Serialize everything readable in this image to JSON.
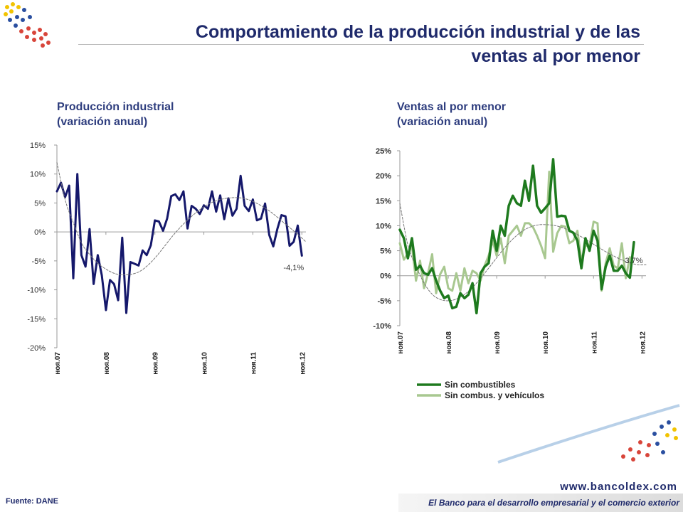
{
  "page": {
    "title_line1": "Comportamiento de la producción industrial y de las",
    "title_line2": "ventas al por menor",
    "source": "Fuente: DANE",
    "website": "www.bancoldex.com",
    "slogan": "El Banco para el desarrollo empresarial y el comercio exterior"
  },
  "colors": {
    "navy": "#15186b",
    "green_dark": "#1e7a1e",
    "green_light": "#a8c890",
    "trend": "#777777",
    "title": "#1f2a6b"
  },
  "chart_data": [
    {
      "type": "line",
      "title": "Producción industrial",
      "subtitle": "(variación anual)",
      "ylim": [
        -20,
        15
      ],
      "yticks": [
        15,
        10,
        5,
        0,
        -5,
        -10,
        -15,
        -20
      ],
      "ytick_format": "percent",
      "xlim": [
        0,
        61
      ],
      "xticks": [
        {
          "x": 0,
          "label": "ноя.07"
        },
        {
          "x": 12,
          "label": "ноя.08"
        },
        {
          "x": 24,
          "label": "ноя.09"
        },
        {
          "x": 36,
          "label": "ноя.10"
        },
        {
          "x": 48,
          "label": "ноя.11"
        },
        {
          "x": 60,
          "label": "ноя.12"
        }
      ],
      "grid": false,
      "series": [
        {
          "values": [
            7,
            8.5,
            6,
            8,
            -8,
            10,
            -4,
            -6,
            0.5,
            -9,
            -4,
            -7.5,
            -13.5,
            -8.3,
            -9,
            -11.8,
            -1,
            -14,
            -5.2,
            -5.5,
            -5.8,
            -3.2,
            -4,
            -2.3,
            2,
            1.8,
            0.2,
            2.3,
            6.2,
            6.5,
            5.5,
            7,
            0.6,
            4.5,
            4,
            3.1,
            4.6,
            4,
            7,
            3.5,
            6.3,
            2.2,
            5.8,
            2.8,
            4,
            9.7,
            4.5,
            3.6,
            5.6,
            2,
            2.3,
            4.9,
            -0.5,
            -2.5,
            0.5,
            2.9,
            2.7,
            -2.4,
            -1.7,
            1.1,
            -4.1
          ]
        },
        {
          "style": "trend",
          "values": [
            12,
            5.5,
            1.5,
            -2,
            -4,
            -5.5,
            -6.5,
            -7.2,
            -7.4,
            -7.3,
            -6.8,
            -5.7,
            -4.2,
            -2.4,
            -0.6,
            1,
            2.4,
            3.6,
            4.6,
            5.3,
            5.7,
            5.9,
            5.9,
            5.6,
            5,
            4.2,
            3.2,
            2,
            0.8,
            -0.4,
            -1.7
          ]
        }
      ],
      "annotation": {
        "text": "-4,1%",
        "x": 58,
        "y": -6.6
      }
    },
    {
      "type": "line",
      "title": "Ventas al por menor",
      "subtitle": "(variación anual)",
      "ylim": [
        -10,
        25
      ],
      "yticks": [
        25,
        20,
        15,
        10,
        5,
        0,
        -5,
        -10
      ],
      "ytick_format": "percent",
      "xlim": [
        0,
        61
      ],
      "xticks": [
        {
          "x": 0,
          "label": "ноя.07"
        },
        {
          "x": 12,
          "label": "ноя.08"
        },
        {
          "x": 24,
          "label": "ноя.09"
        },
        {
          "x": 36,
          "label": "ноя.10"
        },
        {
          "x": 48,
          "label": "ноя.11"
        },
        {
          "x": 60,
          "label": "ноя.12"
        }
      ],
      "grid": false,
      "legend": "bottom-left",
      "series": [
        {
          "name": "Sin combustibles",
          "color": "#1e7a1e",
          "values": [
            9.2,
            7.5,
            3.5,
            7.5,
            1.2,
            2,
            0.5,
            0.2,
            1.5,
            -1,
            -3,
            -4.5,
            -4,
            -6.5,
            -6.2,
            -3.5,
            -4.5,
            -3.8,
            -1.5,
            -7.5,
            0.5,
            1.8,
            2.5,
            9,
            5,
            10,
            8,
            14,
            16,
            14.5,
            14,
            19,
            15,
            22,
            14,
            12.6,
            13.5,
            14.5,
            23.3,
            11.8,
            12,
            11.9,
            9,
            8.6,
            7,
            1.5,
            7.5,
            5,
            9,
            7,
            -2.7,
            1.8,
            4,
            1,
            1,
            2,
            0.5,
            -0.4,
            6.7
          ]
        },
        {
          "name": "Sin combus. y vehículos",
          "color": "#a8c890",
          "values": [
            6.5,
            3.2,
            4.5,
            6,
            -1,
            3,
            -2.5,
            0.5,
            4.3,
            -3.5,
            0.3,
            1.8,
            -2.5,
            -3,
            0.5,
            -3,
            1.5,
            -1.5,
            1,
            0.5,
            -1,
            2,
            4,
            7,
            4,
            7.5,
            2.5,
            8,
            9,
            10,
            8,
            10.5,
            10.5,
            9.7,
            8,
            6,
            3.5,
            20.8,
            4.8,
            8.5,
            10,
            9.8,
            6.5,
            7,
            9,
            3,
            6,
            6,
            10.8,
            10.5,
            -3,
            2.5,
            5.5,
            2,
            1.5,
            6.5,
            -0.5,
            3.7
          ]
        },
        {
          "style": "trend",
          "values": [
            14.5,
            6,
            1.8,
            -1.6,
            -3.8,
            -4.8,
            -5,
            -4.6,
            -3.6,
            -2.1,
            -0.2,
            1.9,
            4,
            6,
            7.7,
            9,
            9.8,
            10.2,
            10.2,
            10,
            9.5,
            8.8,
            7.9,
            6.9,
            5.9,
            4.9,
            4,
            3.2,
            2.6,
            2.2,
            2.2
          ]
        }
      ],
      "annotation": {
        "text": "3,7%",
        "x": 58,
        "y": 2.5
      }
    }
  ]
}
